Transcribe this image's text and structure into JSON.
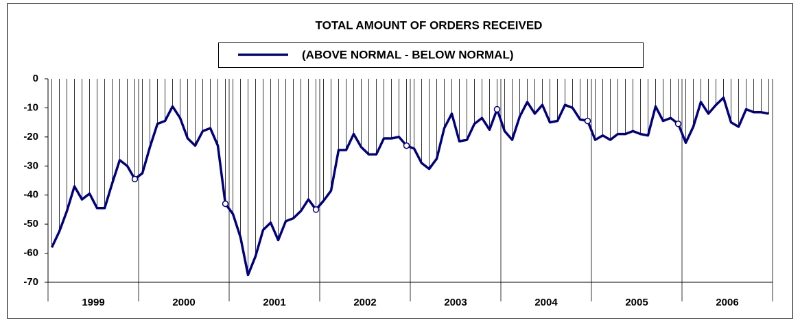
{
  "chart_data": {
    "type": "line",
    "title": "TOTAL AMOUNT OF ORDERS RECEIVED",
    "categories": [
      null,
      null,
      null,
      null,
      null,
      null,
      null,
      null,
      null,
      null,
      null,
      null,
      null,
      null,
      null,
      null,
      null,
      null,
      null,
      null,
      null,
      null,
      null,
      null,
      null,
      null,
      null,
      null,
      null,
      null,
      null,
      null,
      null,
      null,
      null,
      null,
      null,
      null,
      null,
      null,
      null,
      null,
      null,
      null,
      null,
      null,
      null,
      null,
      null,
      null,
      null,
      null,
      null,
      null,
      null,
      null,
      null,
      null,
      null,
      null,
      null,
      null,
      null,
      null,
      null,
      null,
      null,
      null,
      null,
      null,
      null,
      null,
      null,
      null,
      null,
      null,
      null,
      null,
      null,
      null,
      null,
      null,
      null,
      null,
      null,
      null,
      null,
      null,
      null,
      null,
      null,
      null,
      null,
      null,
      null,
      null
    ],
    "year_labels": [
      "1999",
      "2000",
      "2001",
      "2002",
      "2003",
      "2004",
      "2005",
      "2006"
    ],
    "series": [
      {
        "name": "(ABOVE NORMAL - BELOW NORMAL)",
        "color": "#000080",
        "values": [
          -58,
          -52.5,
          -45.5,
          -37,
          -41.5,
          -39.5,
          -44.5,
          -44.5,
          -36,
          -28,
          -30,
          -34.5,
          -32.5,
          -23.5,
          -15.5,
          -14.5,
          -9.5,
          -13.5,
          -20.5,
          -23,
          -18,
          -17,
          -23,
          -43,
          -46.5,
          -54.5,
          -67.5,
          -61,
          -52,
          -49.5,
          -55.5,
          -49,
          -48,
          -45.5,
          -41.5,
          -45,
          -42,
          -38.5,
          -24.5,
          -24.5,
          -19,
          -23.5,
          -26,
          -26,
          -20.5,
          -20.5,
          -20,
          -23,
          -24,
          -29,
          -31,
          -27.5,
          -17,
          -12,
          -21.5,
          -21,
          -15.5,
          -13.5,
          -17.5,
          -10.5,
          -18,
          -21,
          -13,
          -8,
          -12,
          -9,
          -15,
          -14.5,
          -9,
          -10,
          -14,
          -14.5,
          -21,
          -19.5,
          -21,
          -19,
          -19,
          -18,
          -19,
          -19.5,
          -9.5,
          -14.5,
          -13.5,
          -15.5,
          -22,
          -16.5,
          -8,
          -12,
          -9,
          -6.5,
          -15,
          -16.5,
          -10.5,
          -11.5,
          -11.5,
          -12
        ]
      }
    ],
    "marked_points": [
      11,
      23,
      35,
      47,
      59,
      71,
      83
    ],
    "drop_lines": true,
    "ylim": [
      -70,
      0
    ],
    "yticks": [
      0,
      -10,
      -20,
      -30,
      -40,
      -50,
      -60,
      -70
    ]
  }
}
